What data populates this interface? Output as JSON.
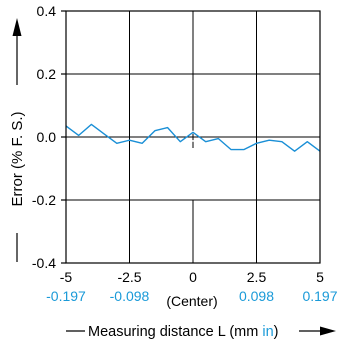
{
  "chart_data": {
    "type": "line",
    "title": "",
    "xlabel": "Measuring distance L (mm in)",
    "xlabel_parts": {
      "prefix": "Measuring distance L (mm ",
      "unit_in": "in",
      "suffix": ")"
    },
    "ylabel": "Error (% F. S.)",
    "center_label": "(Center)",
    "xlim": [
      -5,
      5
    ],
    "ylim": [
      -0.4,
      0.4
    ],
    "x_ticks": [
      {
        "value": -5,
        "label": "-5"
      },
      {
        "value": -2.5,
        "label": "-2.5"
      },
      {
        "value": 0,
        "label": "0"
      },
      {
        "value": 2.5,
        "label": "2.5"
      },
      {
        "value": 5,
        "label": "5"
      }
    ],
    "x_ticks_in": [
      {
        "value": -5,
        "label": "-0.197"
      },
      {
        "value": -2.5,
        "label": "-0.098"
      },
      {
        "value": 2.5,
        "label": "0.098"
      },
      {
        "value": 5,
        "label": "0.197"
      }
    ],
    "y_ticks": [
      {
        "value": 0.4,
        "label": "0.4"
      },
      {
        "value": 0.2,
        "label": "0.2"
      },
      {
        "value": 0.0,
        "label": "0.0"
      },
      {
        "value": -0.2,
        "label": "-0.2"
      },
      {
        "value": -0.4,
        "label": "-0.4"
      }
    ],
    "grid": true,
    "colors": {
      "series": "#1a8fd6",
      "inch_labels": "#1a9ad8",
      "axis": "#000000"
    },
    "series": [
      {
        "x": [
          -5,
          -4.5,
          -4,
          -3.5,
          -3,
          -2.5,
          -2,
          -1.5,
          -1,
          -0.5,
          0,
          0.5,
          1,
          1.5,
          2,
          2.5,
          3,
          3.5,
          4,
          4.5,
          5
        ],
        "y": [
          0.035,
          0.005,
          0.04,
          0.01,
          -0.02,
          -0.01,
          -0.02,
          0.02,
          0.03,
          -0.015,
          0.015,
          -0.015,
          -0.005,
          -0.04,
          -0.04,
          -0.02,
          -0.01,
          -0.015,
          -0.045,
          -0.015,
          -0.045
        ]
      }
    ]
  }
}
